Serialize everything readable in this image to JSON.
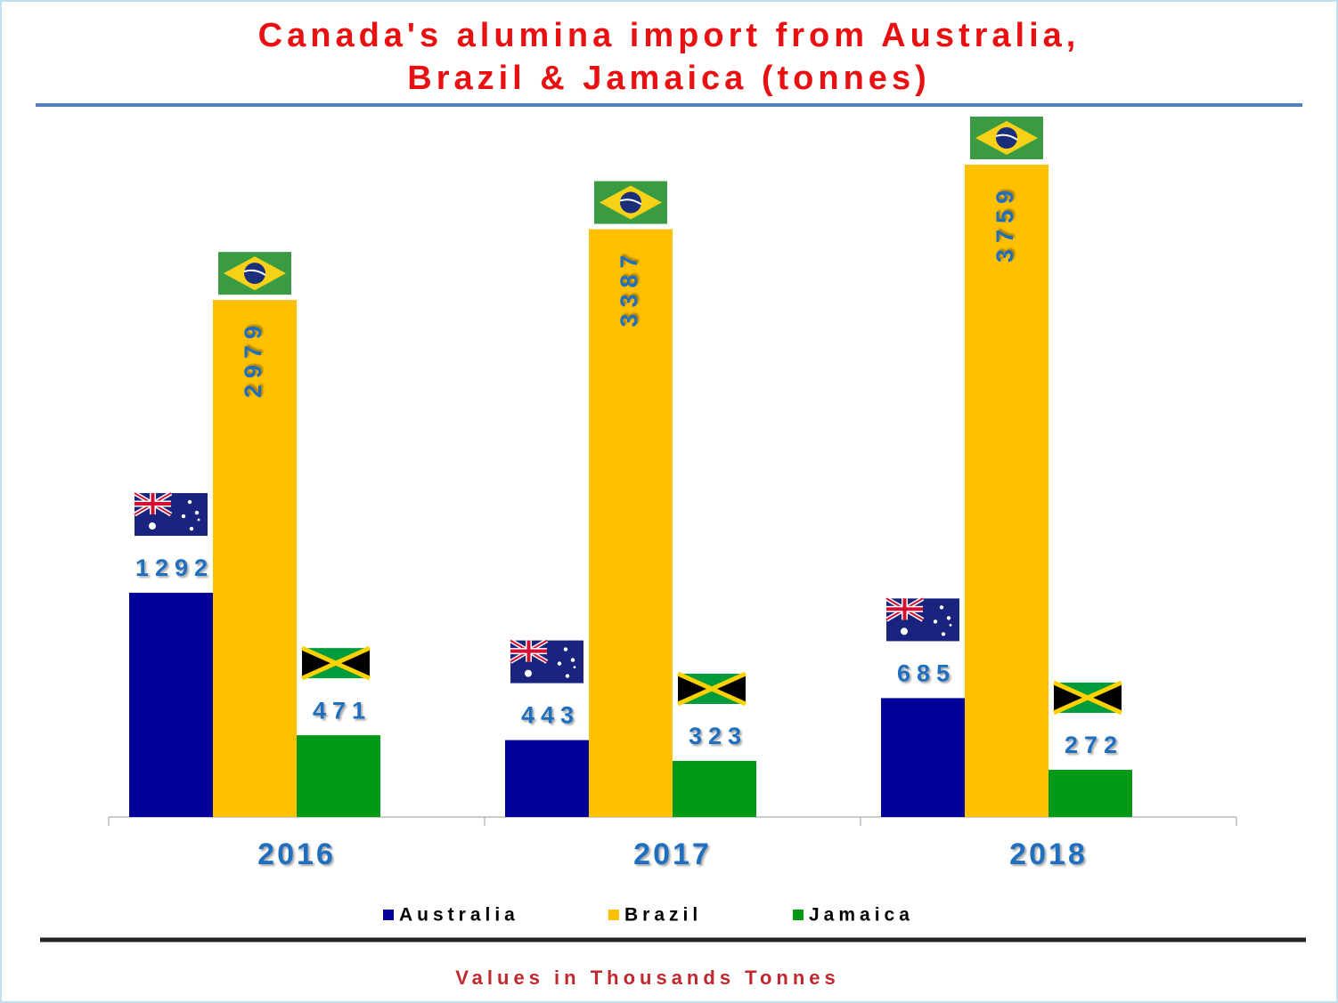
{
  "chart_data": {
    "type": "bar",
    "title": [
      "Canada's alumina import from Australia,",
      "Brazil & Jamaica (tonnes)"
    ],
    "categories": [
      "2016",
      "2017",
      "2018"
    ],
    "series": [
      {
        "name": "Australia",
        "color": "#000099",
        "values": [
          1292,
          443,
          685
        ]
      },
      {
        "name": "Brazil",
        "color": "#ffc000",
        "values": [
          2979,
          3387,
          3759
        ]
      },
      {
        "name": "Jamaica",
        "color": "#009a17",
        "values": [
          471,
          323,
          272
        ]
      }
    ],
    "ylim": [
      0,
      4000
    ],
    "note": "Values in Thousands Tonnes"
  }
}
